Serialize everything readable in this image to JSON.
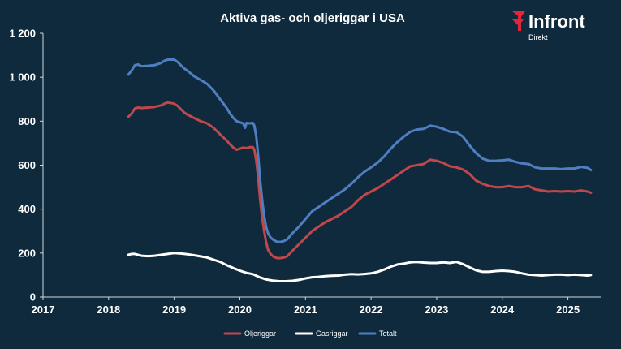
{
  "brand": {
    "name": "Infront",
    "sub": "Direkt",
    "logo_icon": "infront-logo-icon",
    "color": "#e0263a"
  },
  "chart_data": {
    "type": "line",
    "title": "Aktiva gas- och oljeriggar i USA",
    "xlabel": "",
    "ylabel": "",
    "xlim": [
      2017.0,
      2025.5
    ],
    "ylim": [
      0,
      1200
    ],
    "x_ticks": [
      "2017",
      "2018",
      "2019",
      "2020",
      "2021",
      "2022",
      "2023",
      "2024",
      "2025"
    ],
    "y_ticks": [
      "0",
      "200",
      "400",
      "600",
      "800",
      "1 000",
      "1 200"
    ],
    "grid": false,
    "legend_position": "bottom",
    "series": [
      {
        "name": "Oljeriggar",
        "color": "#c0474a",
        "points": [
          [
            2018.3,
            820
          ],
          [
            2018.35,
            835
          ],
          [
            2018.4,
            858
          ],
          [
            2018.45,
            862
          ],
          [
            2018.5,
            860
          ],
          [
            2018.6,
            862
          ],
          [
            2018.7,
            865
          ],
          [
            2018.8,
            872
          ],
          [
            2018.85,
            880
          ],
          [
            2018.9,
            885
          ],
          [
            2019.0,
            880
          ],
          [
            2019.05,
            870
          ],
          [
            2019.1,
            855
          ],
          [
            2019.15,
            840
          ],
          [
            2019.2,
            830
          ],
          [
            2019.3,
            815
          ],
          [
            2019.4,
            800
          ],
          [
            2019.5,
            790
          ],
          [
            2019.6,
            770
          ],
          [
            2019.7,
            740
          ],
          [
            2019.8,
            712
          ],
          [
            2019.85,
            695
          ],
          [
            2019.9,
            680
          ],
          [
            2019.95,
            670
          ],
          [
            2020.0,
            675
          ],
          [
            2020.05,
            680
          ],
          [
            2020.1,
            678
          ],
          [
            2020.15,
            682
          ],
          [
            2020.2,
            682
          ],
          [
            2020.22,
            670
          ],
          [
            2020.25,
            620
          ],
          [
            2020.28,
            540
          ],
          [
            2020.31,
            440
          ],
          [
            2020.34,
            360
          ],
          [
            2020.37,
            300
          ],
          [
            2020.4,
            250
          ],
          [
            2020.43,
            215
          ],
          [
            2020.47,
            195
          ],
          [
            2020.52,
            182
          ],
          [
            2020.58,
            176
          ],
          [
            2020.65,
            178
          ],
          [
            2020.72,
            185
          ],
          [
            2020.8,
            210
          ],
          [
            2020.9,
            240
          ],
          [
            2021.0,
            270
          ],
          [
            2021.1,
            300
          ],
          [
            2021.2,
            320
          ],
          [
            2021.3,
            340
          ],
          [
            2021.4,
            355
          ],
          [
            2021.5,
            370
          ],
          [
            2021.6,
            390
          ],
          [
            2021.7,
            410
          ],
          [
            2021.8,
            440
          ],
          [
            2021.9,
            465
          ],
          [
            2022.0,
            480
          ],
          [
            2022.1,
            495
          ],
          [
            2022.2,
            515
          ],
          [
            2022.3,
            535
          ],
          [
            2022.4,
            555
          ],
          [
            2022.5,
            575
          ],
          [
            2022.6,
            595
          ],
          [
            2022.7,
            600
          ],
          [
            2022.8,
            605
          ],
          [
            2022.9,
            625
          ],
          [
            2023.0,
            620
          ],
          [
            2023.1,
            610
          ],
          [
            2023.2,
            595
          ],
          [
            2023.3,
            590
          ],
          [
            2023.4,
            580
          ],
          [
            2023.5,
            560
          ],
          [
            2023.6,
            530
          ],
          [
            2023.7,
            515
          ],
          [
            2023.8,
            505
          ],
          [
            2023.9,
            500
          ],
          [
            2024.0,
            500
          ],
          [
            2024.1,
            505
          ],
          [
            2024.2,
            500
          ],
          [
            2024.3,
            500
          ],
          [
            2024.4,
            505
          ],
          [
            2024.5,
            490
          ],
          [
            2024.6,
            485
          ],
          [
            2024.7,
            480
          ],
          [
            2024.8,
            482
          ],
          [
            2024.9,
            480
          ],
          [
            2025.0,
            482
          ],
          [
            2025.1,
            480
          ],
          [
            2025.2,
            485
          ],
          [
            2025.3,
            480
          ],
          [
            2025.35,
            475
          ]
        ]
      },
      {
        "name": "Gasriggar",
        "color": "#ffffff",
        "points": [
          [
            2018.3,
            192
          ],
          [
            2018.35,
            196
          ],
          [
            2018.4,
            196
          ],
          [
            2018.5,
            188
          ],
          [
            2018.6,
            186
          ],
          [
            2018.7,
            188
          ],
          [
            2018.8,
            192
          ],
          [
            2018.9,
            196
          ],
          [
            2019.0,
            200
          ],
          [
            2019.1,
            198
          ],
          [
            2019.2,
            195
          ],
          [
            2019.3,
            190
          ],
          [
            2019.4,
            185
          ],
          [
            2019.5,
            180
          ],
          [
            2019.6,
            170
          ],
          [
            2019.7,
            160
          ],
          [
            2019.8,
            145
          ],
          [
            2019.9,
            132
          ],
          [
            2020.0,
            120
          ],
          [
            2020.1,
            110
          ],
          [
            2020.2,
            104
          ],
          [
            2020.3,
            90
          ],
          [
            2020.4,
            80
          ],
          [
            2020.5,
            75
          ],
          [
            2020.6,
            72
          ],
          [
            2020.7,
            72
          ],
          [
            2020.8,
            74
          ],
          [
            2020.9,
            78
          ],
          [
            2021.0,
            85
          ],
          [
            2021.1,
            90
          ],
          [
            2021.2,
            92
          ],
          [
            2021.3,
            95
          ],
          [
            2021.4,
            97
          ],
          [
            2021.5,
            98
          ],
          [
            2021.6,
            102
          ],
          [
            2021.7,
            104
          ],
          [
            2021.8,
            103
          ],
          [
            2021.9,
            105
          ],
          [
            2022.0,
            108
          ],
          [
            2022.1,
            115
          ],
          [
            2022.2,
            125
          ],
          [
            2022.3,
            138
          ],
          [
            2022.4,
            148
          ],
          [
            2022.5,
            152
          ],
          [
            2022.6,
            158
          ],
          [
            2022.7,
            160
          ],
          [
            2022.8,
            157
          ],
          [
            2022.9,
            155
          ],
          [
            2023.0,
            155
          ],
          [
            2023.1,
            158
          ],
          [
            2023.2,
            155
          ],
          [
            2023.3,
            160
          ],
          [
            2023.4,
            150
          ],
          [
            2023.5,
            135
          ],
          [
            2023.6,
            122
          ],
          [
            2023.7,
            115
          ],
          [
            2023.8,
            115
          ],
          [
            2023.9,
            118
          ],
          [
            2024.0,
            120
          ],
          [
            2024.1,
            118
          ],
          [
            2024.2,
            115
          ],
          [
            2024.3,
            108
          ],
          [
            2024.4,
            102
          ],
          [
            2024.5,
            100
          ],
          [
            2024.6,
            98
          ],
          [
            2024.7,
            100
          ],
          [
            2024.8,
            102
          ],
          [
            2024.9,
            102
          ],
          [
            2025.0,
            100
          ],
          [
            2025.1,
            102
          ],
          [
            2025.2,
            100
          ],
          [
            2025.3,
            98
          ],
          [
            2025.35,
            100
          ]
        ]
      },
      {
        "name": "Totalt",
        "color": "#4f7fc0",
        "points": [
          [
            2018.3,
            1012
          ],
          [
            2018.35,
            1030
          ],
          [
            2018.4,
            1055
          ],
          [
            2018.45,
            1058
          ],
          [
            2018.5,
            1050
          ],
          [
            2018.6,
            1052
          ],
          [
            2018.7,
            1055
          ],
          [
            2018.8,
            1065
          ],
          [
            2018.85,
            1075
          ],
          [
            2018.9,
            1080
          ],
          [
            2019.0,
            1080
          ],
          [
            2019.05,
            1070
          ],
          [
            2019.1,
            1055
          ],
          [
            2019.15,
            1040
          ],
          [
            2019.2,
            1030
          ],
          [
            2019.3,
            1005
          ],
          [
            2019.4,
            988
          ],
          [
            2019.5,
            970
          ],
          [
            2019.6,
            940
          ],
          [
            2019.7,
            900
          ],
          [
            2019.8,
            860
          ],
          [
            2019.85,
            835
          ],
          [
            2019.9,
            815
          ],
          [
            2019.95,
            800
          ],
          [
            2020.0,
            795
          ],
          [
            2020.05,
            790
          ],
          [
            2020.08,
            770
          ],
          [
            2020.1,
            792
          ],
          [
            2020.15,
            790
          ],
          [
            2020.2,
            792
          ],
          [
            2020.22,
            780
          ],
          [
            2020.25,
            730
          ],
          [
            2020.28,
            640
          ],
          [
            2020.31,
            530
          ],
          [
            2020.34,
            440
          ],
          [
            2020.37,
            370
          ],
          [
            2020.4,
            320
          ],
          [
            2020.43,
            290
          ],
          [
            2020.47,
            270
          ],
          [
            2020.52,
            258
          ],
          [
            2020.58,
            250
          ],
          [
            2020.65,
            252
          ],
          [
            2020.72,
            262
          ],
          [
            2020.8,
            290
          ],
          [
            2020.9,
            320
          ],
          [
            2021.0,
            355
          ],
          [
            2021.1,
            390
          ],
          [
            2021.2,
            410
          ],
          [
            2021.3,
            430
          ],
          [
            2021.4,
            450
          ],
          [
            2021.5,
            470
          ],
          [
            2021.6,
            490
          ],
          [
            2021.7,
            515
          ],
          [
            2021.8,
            545
          ],
          [
            2021.9,
            570
          ],
          [
            2022.0,
            590
          ],
          [
            2022.1,
            612
          ],
          [
            2022.2,
            640
          ],
          [
            2022.3,
            675
          ],
          [
            2022.4,
            705
          ],
          [
            2022.5,
            730
          ],
          [
            2022.6,
            752
          ],
          [
            2022.7,
            762
          ],
          [
            2022.8,
            765
          ],
          [
            2022.9,
            780
          ],
          [
            2023.0,
            775
          ],
          [
            2023.1,
            765
          ],
          [
            2023.2,
            752
          ],
          [
            2023.3,
            750
          ],
          [
            2023.4,
            730
          ],
          [
            2023.5,
            690
          ],
          [
            2023.6,
            655
          ],
          [
            2023.7,
            630
          ],
          [
            2023.8,
            620
          ],
          [
            2023.9,
            620
          ],
          [
            2024.0,
            622
          ],
          [
            2024.1,
            625
          ],
          [
            2024.2,
            615
          ],
          [
            2024.3,
            608
          ],
          [
            2024.4,
            605
          ],
          [
            2024.5,
            590
          ],
          [
            2024.6,
            585
          ],
          [
            2024.7,
            585
          ],
          [
            2024.8,
            585
          ],
          [
            2024.9,
            582
          ],
          [
            2025.0,
            585
          ],
          [
            2025.1,
            585
          ],
          [
            2025.2,
            592
          ],
          [
            2025.3,
            588
          ],
          [
            2025.35,
            578
          ]
        ]
      }
    ]
  }
}
